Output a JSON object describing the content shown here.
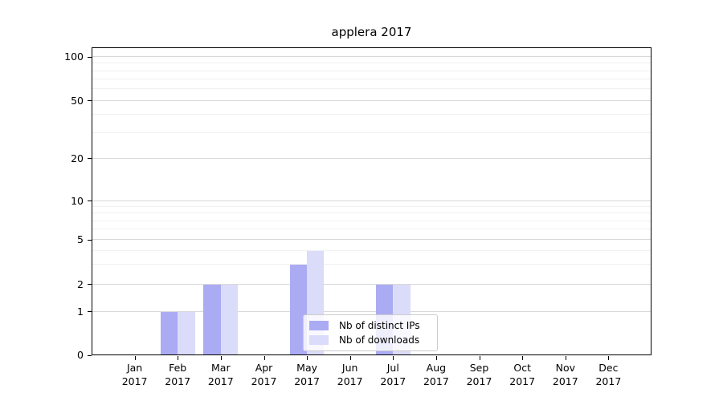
{
  "title": "applera 2017",
  "chart_data": {
    "type": "bar",
    "title": "applera 2017",
    "categories": [
      "Jan 2017",
      "Feb 2017",
      "Mar 2017",
      "Apr 2017",
      "May 2017",
      "Jun 2017",
      "Jul 2017",
      "Aug 2017",
      "Sep 2017",
      "Oct 2017",
      "Nov 2017",
      "Dec 2017"
    ],
    "series": [
      {
        "name": "Nb of distinct IPs",
        "color": "#ababf4",
        "values": [
          0,
          1,
          2,
          0,
          3,
          0,
          2,
          0,
          0,
          0,
          0,
          0
        ]
      },
      {
        "name": "Nb of downloads",
        "color": "#dbdbfa",
        "values": [
          0,
          1,
          2,
          0,
          4,
          0,
          2,
          0,
          0,
          0,
          0,
          0
        ]
      }
    ],
    "xlabel": "",
    "ylabel": "",
    "yscale": "symlog",
    "ylim": [
      0,
      110
    ],
    "yticks": [
      0,
      1,
      2,
      5,
      10,
      20,
      50,
      100
    ],
    "y_minor_ticks": [
      3,
      4,
      6,
      7,
      8,
      9,
      30,
      40,
      60,
      70,
      80,
      90
    ],
    "grid": "horizontal major and minor",
    "legend_position": "lower center"
  },
  "colors": {
    "grid_major": "#d8d8d8",
    "grid_minor": "#f0f0f0",
    "axis": "#000000",
    "legend_border": "#cccccc",
    "legend_background": "rgba(255,255,255,0.8)",
    "text": "#000000"
  }
}
